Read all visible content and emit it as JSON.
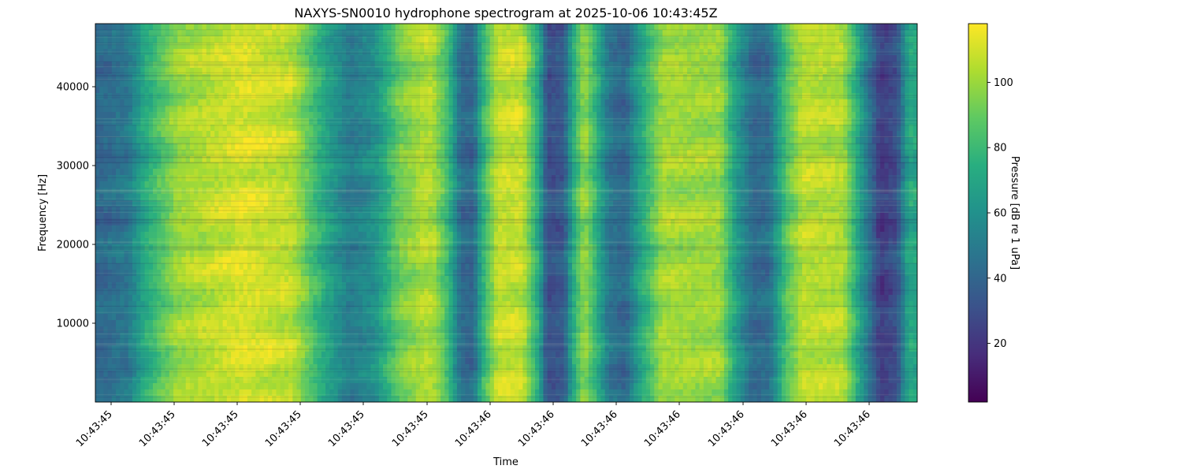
{
  "chart_data": {
    "type": "heatmap",
    "title": "NAXYS-SN0010 hydrophone spectrogram at 2025-10-06 10:43:45Z",
    "xlabel": "Time",
    "ylabel": "Frequency [Hz]",
    "colorbar_label": "Pressure [dB re 1 uPa]",
    "colormap": "viridis",
    "x_tick_labels": [
      "10:43:45",
      "10:43:45",
      "10:43:45",
      "10:43:45",
      "10:43:45",
      "10:43:45",
      "10:43:46",
      "10:43:46",
      "10:43:46",
      "10:43:46",
      "10:43:46",
      "10:43:46",
      "10:43:46"
    ],
    "y_ticks": [
      10000,
      20000,
      30000,
      40000
    ],
    "y_tick_labels": [
      "10000",
      "20000",
      "30000",
      "40000"
    ],
    "ylim": [
      0,
      48000
    ],
    "colorbar_ticks": [
      20,
      40,
      60,
      80,
      100
    ],
    "colorbar_tick_labels": [
      "20",
      "40",
      "60",
      "80",
      "100"
    ],
    "color_range": [
      2,
      118
    ],
    "time_columns": 13,
    "band_profile_db": [
      {
        "t": 0.0,
        "db": 40
      },
      {
        "t": 0.04,
        "db": 48
      },
      {
        "t": 0.06,
        "db": 72
      },
      {
        "t": 0.1,
        "db": 100
      },
      {
        "t": 0.18,
        "db": 112
      },
      {
        "t": 0.24,
        "db": 106
      },
      {
        "t": 0.28,
        "db": 70
      },
      {
        "t": 0.31,
        "db": 50
      },
      {
        "t": 0.34,
        "db": 60
      },
      {
        "t": 0.37,
        "db": 92
      },
      {
        "t": 0.4,
        "db": 104
      },
      {
        "t": 0.41,
        "db": 104
      },
      {
        "t": 0.43,
        "db": 80
      },
      {
        "t": 0.445,
        "db": 42
      },
      {
        "t": 0.46,
        "db": 40
      },
      {
        "t": 0.47,
        "db": 74
      },
      {
        "t": 0.49,
        "db": 108
      },
      {
        "t": 0.52,
        "db": 108
      },
      {
        "t": 0.54,
        "db": 70
      },
      {
        "t": 0.55,
        "db": 30
      },
      {
        "t": 0.57,
        "db": 35
      },
      {
        "t": 0.58,
        "db": 70
      },
      {
        "t": 0.595,
        "db": 100
      },
      {
        "t": 0.61,
        "db": 76
      },
      {
        "t": 0.625,
        "db": 48
      },
      {
        "t": 0.645,
        "db": 40
      },
      {
        "t": 0.66,
        "db": 66
      },
      {
        "t": 0.69,
        "db": 102
      },
      {
        "t": 0.76,
        "db": 100
      },
      {
        "t": 0.78,
        "db": 66
      },
      {
        "t": 0.8,
        "db": 42
      },
      {
        "t": 0.82,
        "db": 44
      },
      {
        "t": 0.84,
        "db": 84
      },
      {
        "t": 0.86,
        "db": 106
      },
      {
        "t": 0.91,
        "db": 104
      },
      {
        "t": 0.935,
        "db": 58
      },
      {
        "t": 0.955,
        "db": 22
      },
      {
        "t": 0.975,
        "db": 30
      },
      {
        "t": 0.99,
        "db": 72
      },
      {
        "t": 1.0,
        "db": 70
      }
    ]
  }
}
